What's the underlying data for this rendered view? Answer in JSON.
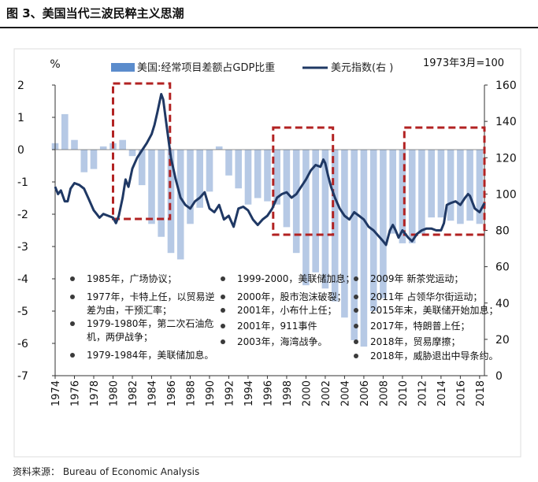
{
  "title": "图 3、美国当代三波民粹主义思潮",
  "source": "资料来源：  Bureau of Economic Analysis",
  "chart_data": {
    "type": "bar+line",
    "left_axis": {
      "unit": "%",
      "ylim": [
        -7,
        2
      ],
      "ticks": [
        2,
        1,
        0,
        -1,
        -2,
        -3,
        -4,
        -5,
        -6,
        -7
      ]
    },
    "right_axis": {
      "ylim": [
        0,
        160
      ],
      "ticks": [
        160,
        140,
        120,
        100,
        80,
        60,
        40,
        20,
        0
      ],
      "note": "1973年3月=100"
    },
    "x_ticks": [
      "1974",
      "1976",
      "1978",
      "1980",
      "1982",
      "1984",
      "1986",
      "1988",
      "1990",
      "1992",
      "1994",
      "1996",
      "1998",
      "2000",
      "2002",
      "2004",
      "2006",
      "2008",
      "2010",
      "2012",
      "2014",
      "2016",
      "2018"
    ],
    "legend": {
      "bar_label": "美国:经常项目差额占GDP比重",
      "line_label": "美元指数(右 )"
    },
    "colors": {
      "bar": "#a9c0e0",
      "legend_bar": "#5b8ccc",
      "line": "#1f3864",
      "box": "#b22222",
      "bullet": "#3a3a3a"
    },
    "bar_series": {
      "name": "美国:经常项目差额占GDP比重",
      "x": [
        1974,
        1975,
        1976,
        1977,
        1978,
        1979,
        1980,
        1981,
        1982,
        1983,
        1984,
        1985,
        1986,
        1987,
        1988,
        1989,
        1990,
        1991,
        1992,
        1993,
        1994,
        1995,
        1996,
        1997,
        1998,
        1999,
        2000,
        2001,
        2002,
        2003,
        2004,
        2005,
        2006,
        2007,
        2008,
        2009,
        2010,
        2011,
        2012,
        2013,
        2014,
        2015,
        2016,
        2017,
        2018
      ],
      "values": [
        0.2,
        1.1,
        0.3,
        -0.7,
        -0.6,
        0.1,
        0.2,
        0.3,
        -0.2,
        -1.1,
        -2.3,
        -2.7,
        -3.2,
        -3.4,
        -2.3,
        -1.8,
        -1.3,
        0.1,
        -0.8,
        -1.2,
        -1.7,
        -1.5,
        -1.6,
        -1.7,
        -2.4,
        -3.2,
        -4.2,
        -3.8,
        -4.3,
        -4.7,
        -5.2,
        -5.9,
        -6.1,
        -5.0,
        -4.6,
        -2.6,
        -2.9,
        -2.9,
        -2.6,
        -2.1,
        -2.1,
        -2.2,
        -2.3,
        -2.2,
        -2.3
      ]
    },
    "line_series": {
      "name": "美元指数(右 )",
      "x": [
        1974.0,
        1974.3,
        1974.6,
        1975.0,
        1975.3,
        1975.6,
        1976.0,
        1976.5,
        1977.0,
        1977.5,
        1978.0,
        1978.3,
        1978.6,
        1979.0,
        1979.5,
        1980.0,
        1980.3,
        1980.6,
        1981.0,
        1981.3,
        1981.6,
        1982.0,
        1982.5,
        1983.0,
        1983.5,
        1984.0,
        1984.3,
        1984.6,
        1985.0,
        1985.2,
        1985.5,
        1985.8,
        1986.0,
        1986.5,
        1987.0,
        1987.5,
        1988.0,
        1988.5,
        1989.0,
        1989.5,
        1990.0,
        1990.5,
        1991.0,
        1991.5,
        1992.0,
        1992.5,
        1993.0,
        1993.5,
        1994.0,
        1994.5,
        1995.0,
        1995.5,
        1996.0,
        1996.5,
        1997.0,
        1997.5,
        1998.0,
        1998.5,
        1999.0,
        1999.5,
        2000.0,
        2000.5,
        2001.0,
        2001.5,
        2001.8,
        2002.0,
        2002.3,
        2002.6,
        2003.0,
        2003.5,
        2004.0,
        2004.5,
        2005.0,
        2005.5,
        2006.0,
        2006.5,
        2007.0,
        2007.5,
        2008.0,
        2008.3,
        2008.7,
        2009.0,
        2009.3,
        2009.6,
        2010.0,
        2010.3,
        2010.6,
        2011.0,
        2011.5,
        2012.0,
        2012.5,
        2013.0,
        2013.5,
        2014.0,
        2014.3,
        2014.6,
        2015.0,
        2015.5,
        2016.0,
        2016.5,
        2016.8,
        2017.0,
        2017.5,
        2018.0,
        2018.5
      ],
      "values": [
        104,
        100,
        102,
        96,
        96,
        103,
        106,
        105,
        103,
        97,
        91,
        89,
        87,
        89,
        88,
        87,
        84,
        88,
        98,
        108,
        104,
        114,
        120,
        124,
        128,
        133,
        138,
        145,
        155,
        152,
        140,
        128,
        120,
        108,
        98,
        94,
        92,
        96,
        98,
        101,
        92,
        90,
        94,
        86,
        88,
        82,
        92,
        93,
        91,
        86,
        83,
        86,
        88,
        92,
        98,
        100,
        101,
        98,
        100,
        104,
        108,
        113,
        116,
        115,
        119,
        117,
        110,
        104,
        98,
        92,
        88,
        86,
        90,
        88,
        86,
        82,
        80,
        77,
        74,
        72,
        80,
        83,
        80,
        76,
        80,
        78,
        76,
        74,
        78,
        80,
        81,
        81,
        80,
        80,
        84,
        94,
        95,
        96,
        94,
        98,
        100,
        99,
        92,
        90,
        95
      ]
    },
    "highlight_boxes": [
      {
        "from": 1980.0,
        "to": 1985.9
      },
      {
        "from": 1996.6,
        "to": 2002.8
      },
      {
        "from": 2010.2,
        "to": 2018.5
      }
    ],
    "annotations": [
      {
        "text": "1985年，广场协议；"
      },
      {
        "text": "1977年，卡特上任，以贸易逆",
        "cont": "差为由，干预汇率；"
      },
      {
        "text": "1979-1980年，第二次石油危",
        "cont": "机，两伊战争；"
      },
      {
        "text": "1979-1984年，美联储加息。"
      },
      {
        "text": "1999-2000，美联储加息；"
      },
      {
        "text": "2000年，股市泡沫破裂；"
      },
      {
        "text": "2001年，小布什上任；"
      },
      {
        "text": "2001年，911事件"
      },
      {
        "text": "2003年，海湾战争。"
      },
      {
        "text": "2009年 新茶党运动；"
      },
      {
        "text": "2011年 占领华尔街运动；"
      },
      {
        "text": "2015年末，美联储开始加息；"
      },
      {
        "text": "2017年，特朗普上任；"
      },
      {
        "text": "2018年，贸易摩擦；"
      },
      {
        "text": "2018年，威胁退出中导条约。"
      }
    ]
  }
}
